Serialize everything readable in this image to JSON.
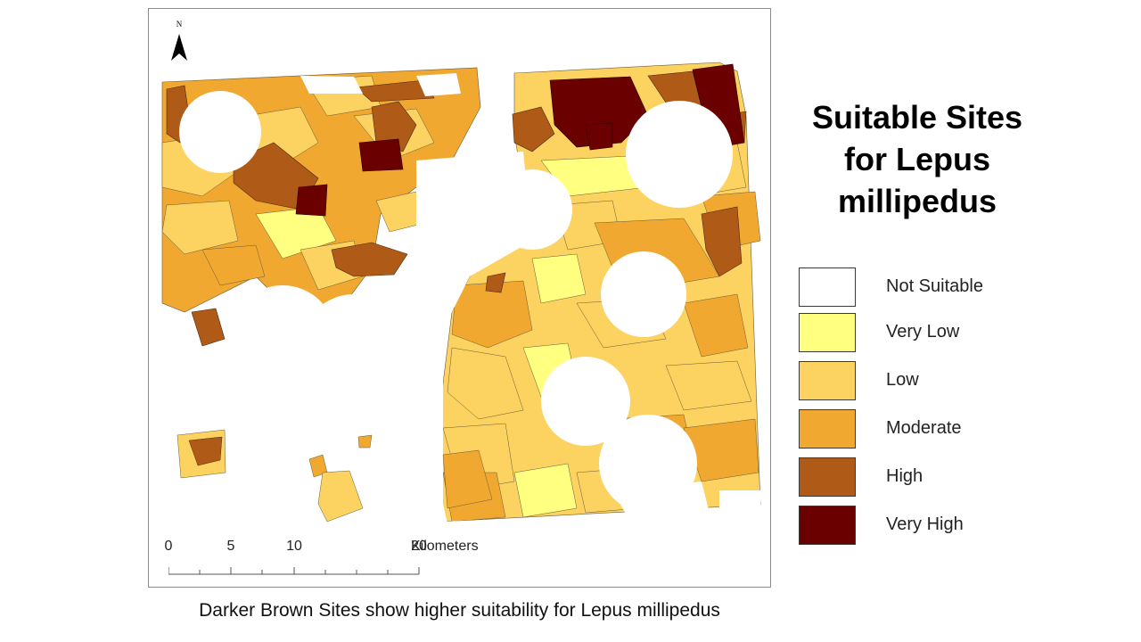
{
  "title": "Suitable Sites for Lepus millipedus",
  "caption": "Darker Brown Sites show higher suitability for Lepus millipedus",
  "north_label": "N",
  "scale_bar": {
    "ticks": [
      "0",
      "5",
      "10",
      "20"
    ],
    "unit": "Kilometers"
  },
  "legend": [
    {
      "label": "Not Suitable",
      "color": "#ffffff"
    },
    {
      "label": "Very Low",
      "color": "#ffff80"
    },
    {
      "label": "Low",
      "color": "#fcd360"
    },
    {
      "label": "Moderate",
      "color": "#f0a830"
    },
    {
      "label": "High",
      "color": "#b05a18"
    },
    {
      "label": "Very High",
      "color": "#6b0000"
    }
  ],
  "suitability_levels": [
    "Not Suitable",
    "Very Low",
    "Low",
    "Moderate",
    "High",
    "Very High"
  ]
}
